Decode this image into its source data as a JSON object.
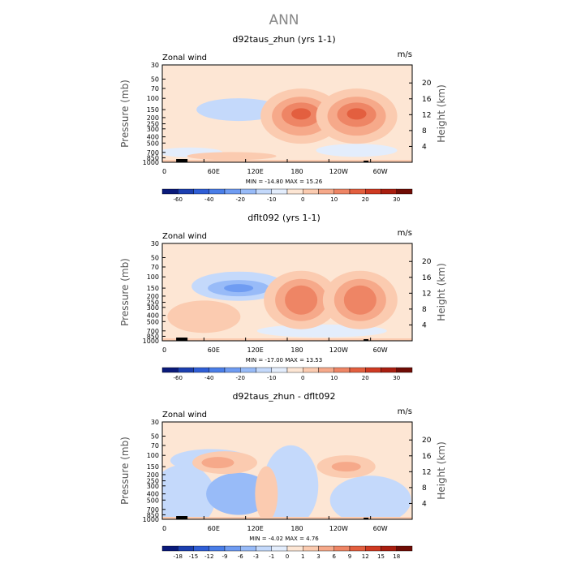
{
  "figure": {
    "title": "ANN"
  },
  "chart_data": [
    {
      "type": "heatmap",
      "title": "d92taus_zhun (yrs 1-1)",
      "left_label": "Zonal wind",
      "right_label": "m/s",
      "xlabel": "",
      "ylabel": "Pressure (mb)",
      "y2label": "Height (km)",
      "x_ticks": [
        "0",
        "60E",
        "120E",
        "180",
        "120W",
        "60W"
      ],
      "y_ticks": [
        "30",
        "50",
        "70",
        "100",
        "150",
        "200",
        "250",
        "300",
        "400",
        "500",
        "700",
        "850",
        "1000"
      ],
      "y2_ticks": [
        "20",
        "16",
        "12",
        "8",
        "4"
      ],
      "stats": "MIN = -14.80   MAX =  15.26",
      "colorbar_labels": [
        "-60",
        "-40",
        "-20",
        "-10",
        "0",
        "10",
        "20",
        "30"
      ],
      "colorbar_colors": [
        "#0a1a7a",
        "#1c3fb0",
        "#2f5ed6",
        "#4a7ee8",
        "#6f9cf2",
        "#98bbf8",
        "#c4d9fb",
        "#e3edfc",
        "#fde6d4",
        "#fbcbb0",
        "#f6a98a",
        "#ee8565",
        "#e35f3f",
        "#cf3a22",
        "#a91e10",
        "#700c05"
      ],
      "features": [
        {
          "kind": "jet_core",
          "lon": 200,
          "plev": 190,
          "value": 15.26
        },
        {
          "kind": "jet_core",
          "lon": 280,
          "plev": 190,
          "value": 14
        },
        {
          "kind": "easterly",
          "lon": 110,
          "plev": 145,
          "value": -8
        }
      ]
    },
    {
      "type": "heatmap",
      "title": "dflt092 (yrs 1-1)",
      "left_label": "Zonal wind",
      "right_label": "m/s",
      "xlabel": "",
      "ylabel": "Pressure (mb)",
      "y2label": "Height (km)",
      "x_ticks": [
        "0",
        "60E",
        "120E",
        "180",
        "120W",
        "60W"
      ],
      "y_ticks": [
        "30",
        "50",
        "70",
        "100",
        "150",
        "200",
        "250",
        "300",
        "400",
        "500",
        "700",
        "850",
        "1000"
      ],
      "y2_ticks": [
        "20",
        "16",
        "12",
        "8",
        "4"
      ],
      "stats": "MIN = -17.00   MAX =  13.53",
      "colorbar_labels": [
        "-60",
        "-40",
        "-20",
        "-10",
        "0",
        "10",
        "20",
        "30"
      ],
      "colorbar_colors": [
        "#0a1a7a",
        "#1c3fb0",
        "#2f5ed6",
        "#4a7ee8",
        "#6f9cf2",
        "#98bbf8",
        "#c4d9fb",
        "#e3edfc",
        "#fde6d4",
        "#fbcbb0",
        "#f6a98a",
        "#ee8565",
        "#e35f3f",
        "#cf3a22",
        "#a91e10",
        "#700c05"
      ],
      "features": [
        {
          "kind": "jet_core",
          "lon": 200,
          "plev": 230,
          "value": 13.53
        },
        {
          "kind": "jet_core",
          "lon": 285,
          "plev": 230,
          "value": 12
        },
        {
          "kind": "easterly",
          "lon": 110,
          "plev": 150,
          "value": -17
        }
      ]
    },
    {
      "type": "heatmap",
      "title": "d92taus_zhun - dflt092",
      "left_label": "Zonal wind",
      "right_label": "m/s",
      "xlabel": "",
      "ylabel": "Pressure (mb)",
      "y2label": "Height (km)",
      "x_ticks": [
        "0",
        "60E",
        "120E",
        "180",
        "120W",
        "60W"
      ],
      "y_ticks": [
        "30",
        "50",
        "70",
        "100",
        "150",
        "200",
        "250",
        "300",
        "400",
        "500",
        "700",
        "850",
        "1000"
      ],
      "y2_ticks": [
        "20",
        "16",
        "12",
        "8",
        "4"
      ],
      "stats": "MIN = -4.02   MAX =  4.76",
      "colorbar_labels": [
        "-18",
        "-15",
        "-12",
        "-9",
        "-6",
        "-3",
        "-1",
        "0",
        "1",
        "3",
        "6",
        "9",
        "12",
        "15",
        "18"
      ],
      "colorbar_colors": [
        "#0a1a7a",
        "#1c3fb0",
        "#2f5ed6",
        "#4a7ee8",
        "#6f9cf2",
        "#98bbf8",
        "#c4d9fb",
        "#e3edfc",
        "#fde6d4",
        "#fbcbb0",
        "#f6a98a",
        "#ee8565",
        "#e35f3f",
        "#cf3a22",
        "#a91e10",
        "#700c05"
      ],
      "features": [
        {
          "kind": "positive",
          "lon": 90,
          "plev": 130,
          "value": 3
        },
        {
          "kind": "positive",
          "lon": 265,
          "plev": 150,
          "value": 3
        },
        {
          "kind": "negative",
          "lon": 30,
          "plev": 380,
          "value": -3
        },
        {
          "kind": "negative",
          "lon": 185,
          "plev": 300,
          "value": -3
        }
      ]
    }
  ]
}
